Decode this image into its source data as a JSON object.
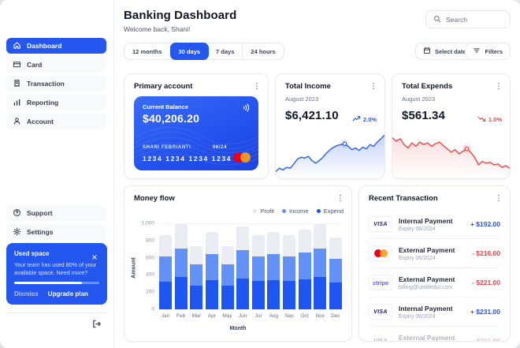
{
  "app": {
    "brand_blue": "#2456f0",
    "negative_red": "#e8454a"
  },
  "sidebar": {
    "nav": [
      {
        "icon": "home-icon",
        "label": "Dashboard",
        "active": true
      },
      {
        "icon": "credit-card-icon",
        "label": "Card",
        "active": false
      },
      {
        "icon": "receipt-icon",
        "label": "Transaction",
        "active": false
      },
      {
        "icon": "bar-chart-icon",
        "label": "Reporting",
        "active": false
      },
      {
        "icon": "user-icon",
        "label": "Account",
        "active": false
      }
    ],
    "secondary_nav": [
      {
        "icon": "help-icon",
        "label": "Support",
        "active": false
      },
      {
        "icon": "gear-icon",
        "label": "Settings",
        "active": false
      }
    ],
    "used_space": {
      "title": "Used space",
      "body": "Your team has used 80% of your available space. Need more?",
      "percent_used": 80,
      "dismiss_label": "Dismiss",
      "upgrade_label": "Upgrade plan"
    }
  },
  "header": {
    "title": "Banking Dashboard",
    "subtitle": "Welcome back, Shani!",
    "search_placeholder": "Search"
  },
  "toolbar": {
    "ranges": [
      "12 months",
      "30 days",
      "7 days",
      "24 hours"
    ],
    "active_range": "30 days",
    "select_dates_label": "Select dates",
    "filters_label": "Filters"
  },
  "primary_account": {
    "title": "Primary account",
    "balance_label": "Current Balance",
    "balance": "$40,206.20",
    "holder": "SHANI FEBRIANTI",
    "expiry": "06/24",
    "number": "1234 1234 1234 1234",
    "network": "mastercard"
  },
  "total_income": {
    "title": "Total Income",
    "period": "August 2023",
    "amount": "$6,421.10",
    "change": "2.0%",
    "trend": "up",
    "chart_data": {
      "type": "line",
      "color": "#2e63f5",
      "points": [
        50,
        46,
        48,
        45,
        46,
        41,
        35,
        33,
        34,
        32,
        37,
        40,
        37,
        33,
        28,
        24,
        21,
        19,
        18,
        17,
        20,
        24,
        22,
        25,
        21,
        23,
        18,
        20,
        15,
        11,
        7
      ],
      "marker_index": 19
    }
  },
  "total_expends": {
    "title": "Total Expends",
    "period": "August 2023",
    "amount": "$561.34",
    "change": "1.0%",
    "trend": "down",
    "chart_data": {
      "type": "line",
      "color": "#ef4e4e",
      "points": [
        10,
        14,
        11,
        18,
        22,
        16,
        20,
        15,
        18,
        16,
        20,
        17,
        15,
        19,
        23,
        27,
        24,
        29,
        26,
        23,
        27,
        33,
        42,
        38,
        40,
        39,
        42,
        41,
        45,
        43,
        46
      ],
      "marker_index": 19
    }
  },
  "money_flow": {
    "title": "Money flow",
    "chart_data": {
      "type": "bar",
      "stacked": true,
      "categories": [
        "Jan",
        "Feb",
        "Mar",
        "Apr",
        "May",
        "Jun",
        "Jul",
        "Aug",
        "Sep",
        "Oct",
        "Nov",
        "Dec"
      ],
      "series": [
        {
          "name": "Expend",
          "color": "#1d56f3",
          "values": [
            325,
            375,
            275,
            340,
            275,
            360,
            330,
            340,
            330,
            350,
            375,
            310
          ]
        },
        {
          "name": "Income",
          "color": "#6292f7",
          "values": [
            290,
            335,
            245,
            300,
            245,
            325,
            285,
            300,
            285,
            315,
            335,
            280
          ]
        },
        {
          "name": "Profit",
          "color": "#e9ecf2",
          "values": [
            245,
            280,
            215,
            260,
            215,
            275,
            250,
            260,
            250,
            265,
            280,
            245
          ]
        }
      ],
      "legend": [
        {
          "name": "Profit",
          "color": "#e4e7ee"
        },
        {
          "name": "Income",
          "color": "#6292f7"
        },
        {
          "name": "Expend",
          "color": "#1d56f3"
        }
      ],
      "xlabel": "Month",
      "ylabel": "Amount",
      "ylim": [
        0,
        1000
      ],
      "yticks": [
        "0",
        "200",
        "400",
        "600",
        "800",
        "1,000"
      ]
    }
  },
  "recent_transactions": {
    "title": "Recent Transaction",
    "rows": [
      {
        "brand": "visa",
        "name": "Internal Payment",
        "detail": "Expiry 06/2024",
        "amount": "+ $192.00",
        "direction": "credit",
        "faded": false
      },
      {
        "brand": "mastercard",
        "name": "External Payment",
        "detail": "Expiry 06/2024",
        "amount": "- $216.00",
        "direction": "debit",
        "faded": false
      },
      {
        "brand": "stripe",
        "name": "External Payment",
        "detail": "billing@untitledui.com",
        "amount": "- $221.00",
        "direction": "debit",
        "faded": false
      },
      {
        "brand": "visa",
        "name": "Internal Payment",
        "detail": "Expiry 06/2024",
        "amount": "+ $231.00",
        "direction": "credit",
        "faded": false
      },
      {
        "brand": "visa",
        "name": "External Payment",
        "detail": "Expiry 06/2024",
        "amount": "- $211.00",
        "direction": "debit",
        "faded": true
      }
    ]
  }
}
